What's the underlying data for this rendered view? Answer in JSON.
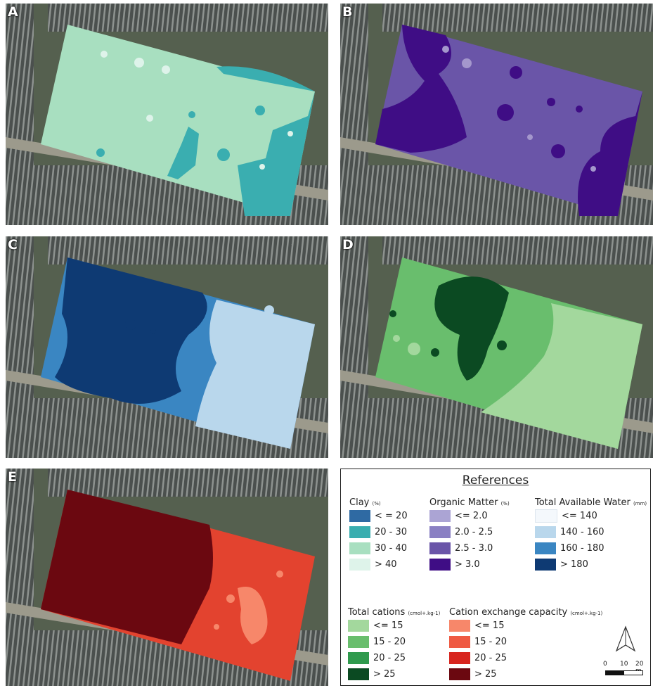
{
  "panels": [
    {
      "letter": "A",
      "bg": "#a8dfc0",
      "dark": "#3aaeb0",
      "light": "#def3ea"
    },
    {
      "letter": "B",
      "bg": "#6a55a8",
      "dark": "#3f0d85",
      "light": "#a497cc"
    },
    {
      "letter": "C",
      "bg": "#3a86c2",
      "dark": "#0e3a73",
      "light": "#b9d7ec"
    },
    {
      "letter": "D",
      "bg": "#69be6d",
      "dark": "#0b4a22",
      "light": "#a3d89d"
    },
    {
      "letter": "E",
      "bg": "#e3432f",
      "dark": "#6b0810",
      "light": "#f7876a"
    }
  ],
  "legend": {
    "title": "References",
    "groups": [
      {
        "name": "Clay",
        "unit": "(%)",
        "items": [
          {
            "label": "< = 20",
            "color": "#2f6aa3"
          },
          {
            "label": "20 - 30",
            "color": "#3aaeb0"
          },
          {
            "label": "30 - 40",
            "color": "#a8dfc0"
          },
          {
            "label": "> 40",
            "color": "#def3ea"
          }
        ]
      },
      {
        "name": "Organic Matter",
        "unit": "(%)",
        "items": [
          {
            "label": "<= 2.0",
            "color": "#aba4d4"
          },
          {
            "label": "2.0 - 2.5",
            "color": "#8a80c3"
          },
          {
            "label": "2.5 - 3.0",
            "color": "#6a55a8"
          },
          {
            "label": "> 3.0",
            "color": "#3f0d85"
          }
        ]
      },
      {
        "name": "Total Available Water",
        "unit": "(mm)",
        "items": [
          {
            "label": "<= 140",
            "color": "#f4f8fc"
          },
          {
            "label": "140 - 160",
            "color": "#b9d7ec"
          },
          {
            "label": "160 - 180",
            "color": "#3a86c2"
          },
          {
            "label": "> 180",
            "color": "#0e3a73"
          }
        ]
      },
      {
        "name": "Total cations",
        "unit": "(cmol+.kg-1)",
        "items": [
          {
            "label": "<= 15",
            "color": "#a3d89d"
          },
          {
            "label": "15 - 20",
            "color": "#69be6d"
          },
          {
            "label": "20 - 25",
            "color": "#2f9a4d"
          },
          {
            "label": "> 25",
            "color": "#0b4a22"
          }
        ]
      },
      {
        "name": "Cation exchange capacity",
        "unit": "(cmol+.kg-1)",
        "items": [
          {
            "label": "<= 15",
            "color": "#f7876a"
          },
          {
            "label": "15 - 20",
            "color": "#ef5a43"
          },
          {
            "label": "20 - 25",
            "color": "#d8261f"
          },
          {
            "label": "> 25",
            "color": "#6b0810"
          }
        ]
      }
    ],
    "scale": {
      "labels": [
        "0",
        "10",
        "20 m"
      ]
    }
  }
}
